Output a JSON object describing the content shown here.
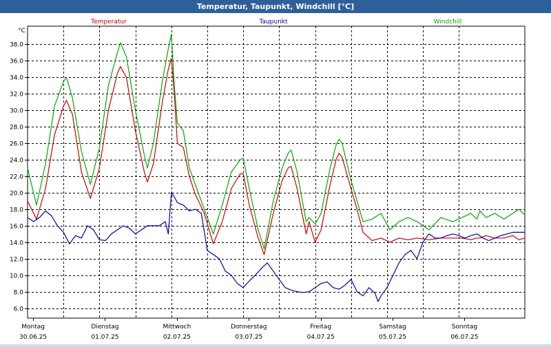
{
  "window": {
    "title": "Temperatur, Taupunkt, Windchill [°C]"
  },
  "chart_data": {
    "type": "line",
    "unit_label": "°C",
    "grid": true,
    "ylim": [
      4.8,
      40.2
    ],
    "y_ticks": [
      6.0,
      8.0,
      10.0,
      12.0,
      14.0,
      16.0,
      18.0,
      20.0,
      22.0,
      24.0,
      26.0,
      28.0,
      30.0,
      32.0,
      34.0,
      36.0,
      38.0
    ],
    "x_hours_range": [
      0,
      166
    ],
    "day_labels": [
      {
        "weekday": "Montag",
        "date": "30.06.25",
        "hour": 0
      },
      {
        "weekday": "Dienstag",
        "date": "01.07.25",
        "hour": 24
      },
      {
        "weekday": "Mittwoch",
        "date": "02.07.25",
        "hour": 48
      },
      {
        "weekday": "Donnerstag",
        "date": "03.07.25",
        "hour": 72
      },
      {
        "weekday": "Freitag",
        "date": "04.07.25",
        "hour": 96
      },
      {
        "weekday": "Samstag",
        "date": "05.07.25",
        "hour": 120
      },
      {
        "weekday": "Sonntag",
        "date": "06.07.25",
        "hour": 144
      }
    ],
    "series": [
      {
        "name": "Temperatur",
        "color": "#cc0000",
        "points": [
          [
            0,
            19.0
          ],
          [
            3,
            16.8
          ],
          [
            6,
            20.5
          ],
          [
            9,
            27.0
          ],
          [
            12,
            30.5
          ],
          [
            13,
            31.2
          ],
          [
            15,
            29.5
          ],
          [
            18,
            22.5
          ],
          [
            21,
            19.3
          ],
          [
            24,
            23.0
          ],
          [
            27,
            30.0
          ],
          [
            30,
            34.5
          ],
          [
            31,
            35.3
          ],
          [
            33,
            34.0
          ],
          [
            36,
            27.5
          ],
          [
            39,
            22.5
          ],
          [
            40,
            21.3
          ],
          [
            42,
            23.5
          ],
          [
            45,
            31.0
          ],
          [
            47,
            35.0
          ],
          [
            48,
            36.3
          ],
          [
            49,
            32.0
          ],
          [
            50,
            26.0
          ],
          [
            52,
            25.5
          ],
          [
            54,
            22.0
          ],
          [
            56,
            19.8
          ],
          [
            59,
            17.5
          ],
          [
            62,
            13.8
          ],
          [
            65,
            16.5
          ],
          [
            68,
            20.5
          ],
          [
            71,
            22.3
          ],
          [
            72,
            22.3
          ],
          [
            74,
            18.5
          ],
          [
            77,
            14.5
          ],
          [
            79,
            12.5
          ],
          [
            82,
            17.5
          ],
          [
            85,
            21.5
          ],
          [
            87,
            23.0
          ],
          [
            88,
            23.2
          ],
          [
            90,
            20.5
          ],
          [
            93,
            15.0
          ],
          [
            94,
            16.5
          ],
          [
            96,
            14.0
          ],
          [
            98,
            15.5
          ],
          [
            101,
            21.0
          ],
          [
            103,
            24.0
          ],
          [
            104,
            24.8
          ],
          [
            105,
            24.3
          ],
          [
            108,
            20.5
          ],
          [
            110,
            18.0
          ],
          [
            112,
            15.2
          ],
          [
            115,
            14.2
          ],
          [
            118,
            14.5
          ],
          [
            121,
            14.0
          ],
          [
            124,
            14.5
          ],
          [
            127,
            14.3
          ],
          [
            130,
            14.5
          ],
          [
            134,
            14.3
          ],
          [
            138,
            14.5
          ],
          [
            142,
            14.5
          ],
          [
            145,
            14.5
          ],
          [
            148,
            14.3
          ],
          [
            150,
            14.5
          ],
          [
            151,
            14.5
          ],
          [
            153,
            14.8
          ],
          [
            156,
            14.5
          ],
          [
            159,
            14.5
          ],
          [
            162,
            14.8
          ],
          [
            164,
            14.3
          ],
          [
            166,
            14.5
          ]
        ]
      },
      {
        "name": "Taupunkt",
        "color": "#0000aa",
        "points": [
          [
            0,
            17.0
          ],
          [
            2,
            16.5
          ],
          [
            4,
            17.0
          ],
          [
            6,
            17.8
          ],
          [
            8,
            17.2
          ],
          [
            10,
            16.0
          ],
          [
            12,
            15.2
          ],
          [
            14,
            13.8
          ],
          [
            16,
            14.8
          ],
          [
            18,
            14.5
          ],
          [
            20,
            16.0
          ],
          [
            22,
            15.5
          ],
          [
            24,
            14.3
          ],
          [
            26,
            14.2
          ],
          [
            28,
            15.0
          ],
          [
            30,
            15.5
          ],
          [
            32,
            16.0
          ],
          [
            34,
            15.7
          ],
          [
            36,
            15.0
          ],
          [
            38,
            15.5
          ],
          [
            40,
            16.0
          ],
          [
            42,
            16.0
          ],
          [
            44,
            16.0
          ],
          [
            46,
            16.5
          ],
          [
            47,
            15.0
          ],
          [
            48,
            20.0
          ],
          [
            49,
            19.5
          ],
          [
            50,
            18.8
          ],
          [
            52,
            18.5
          ],
          [
            54,
            17.8
          ],
          [
            56,
            18.0
          ],
          [
            58,
            17.5
          ],
          [
            60,
            13.0
          ],
          [
            62,
            12.5
          ],
          [
            64,
            12.0
          ],
          [
            66,
            10.5
          ],
          [
            68,
            10.0
          ],
          [
            70,
            9.0
          ],
          [
            72,
            8.5
          ],
          [
            74,
            9.3
          ],
          [
            76,
            10.0
          ],
          [
            78,
            10.8
          ],
          [
            80,
            11.5
          ],
          [
            82,
            10.5
          ],
          [
            84,
            9.5
          ],
          [
            86,
            8.5
          ],
          [
            88,
            8.2
          ],
          [
            90,
            8.0
          ],
          [
            92,
            7.9
          ],
          [
            94,
            8.0
          ],
          [
            96,
            8.5
          ],
          [
            98,
            9.0
          ],
          [
            100,
            9.2
          ],
          [
            102,
            8.5
          ],
          [
            104,
            8.3
          ],
          [
            106,
            8.8
          ],
          [
            108,
            9.5
          ],
          [
            110,
            8.0
          ],
          [
            112,
            7.5
          ],
          [
            114,
            8.5
          ],
          [
            116,
            7.8
          ],
          [
            117,
            6.8
          ],
          [
            118,
            7.5
          ],
          [
            120,
            8.5
          ],
          [
            122,
            10.0
          ],
          [
            124,
            11.5
          ],
          [
            126,
            12.5
          ],
          [
            128,
            13.0
          ],
          [
            130,
            12.0
          ],
          [
            132,
            14.0
          ],
          [
            134,
            15.0
          ],
          [
            136,
            14.5
          ],
          [
            138,
            14.5
          ],
          [
            140,
            14.8
          ],
          [
            142,
            15.0
          ],
          [
            144,
            14.8
          ],
          [
            146,
            14.5
          ],
          [
            148,
            14.8
          ],
          [
            150,
            15.0
          ],
          [
            152,
            14.5
          ],
          [
            154,
            14.2
          ],
          [
            156,
            14.5
          ],
          [
            158,
            14.8
          ],
          [
            160,
            15.0
          ],
          [
            162,
            15.2
          ],
          [
            164,
            15.2
          ],
          [
            166,
            15.2
          ]
        ]
      },
      {
        "name": "Windchill",
        "color": "#00aa00",
        "points": [
          [
            0,
            23.0
          ],
          [
            3,
            18.5
          ],
          [
            6,
            23.5
          ],
          [
            9,
            30.5
          ],
          [
            12,
            33.5
          ],
          [
            13,
            34.0
          ],
          [
            15,
            31.5
          ],
          [
            18,
            25.0
          ],
          [
            21,
            21.0
          ],
          [
            24,
            25.5
          ],
          [
            27,
            33.0
          ],
          [
            30,
            37.0
          ],
          [
            31,
            38.2
          ],
          [
            33,
            36.5
          ],
          [
            36,
            30.0
          ],
          [
            39,
            24.5
          ],
          [
            40,
            23.0
          ],
          [
            42,
            26.0
          ],
          [
            45,
            33.5
          ],
          [
            47,
            37.5
          ],
          [
            48,
            39.2
          ],
          [
            49,
            33.0
          ],
          [
            50,
            28.5
          ],
          [
            52,
            27.5
          ],
          [
            54,
            23.0
          ],
          [
            56,
            21.0
          ],
          [
            59,
            18.0
          ],
          [
            62,
            15.0
          ],
          [
            65,
            18.5
          ],
          [
            68,
            22.5
          ],
          [
            71,
            24.0
          ],
          [
            72,
            24.2
          ],
          [
            74,
            20.5
          ],
          [
            77,
            15.5
          ],
          [
            79,
            13.2
          ],
          [
            82,
            19.0
          ],
          [
            85,
            23.0
          ],
          [
            87,
            24.8
          ],
          [
            88,
            25.2
          ],
          [
            90,
            22.5
          ],
          [
            93,
            16.5
          ],
          [
            94,
            17.0
          ],
          [
            96,
            16.2
          ],
          [
            98,
            17.5
          ],
          [
            101,
            23.0
          ],
          [
            103,
            25.8
          ],
          [
            104,
            26.5
          ],
          [
            105,
            26.0
          ],
          [
            108,
            21.5
          ],
          [
            110,
            19.0
          ],
          [
            112,
            16.5
          ],
          [
            115,
            16.8
          ],
          [
            118,
            17.5
          ],
          [
            121,
            15.5
          ],
          [
            124,
            16.5
          ],
          [
            127,
            17.0
          ],
          [
            130,
            16.5
          ],
          [
            134,
            15.5
          ],
          [
            138,
            17.0
          ],
          [
            142,
            16.5
          ],
          [
            145,
            17.0
          ],
          [
            148,
            17.5
          ],
          [
            150,
            16.8
          ],
          [
            151,
            17.8
          ],
          [
            153,
            17.0
          ],
          [
            156,
            17.5
          ],
          [
            159,
            16.8
          ],
          [
            162,
            17.5
          ],
          [
            164,
            18.0
          ],
          [
            166,
            17.3
          ]
        ]
      }
    ]
  }
}
